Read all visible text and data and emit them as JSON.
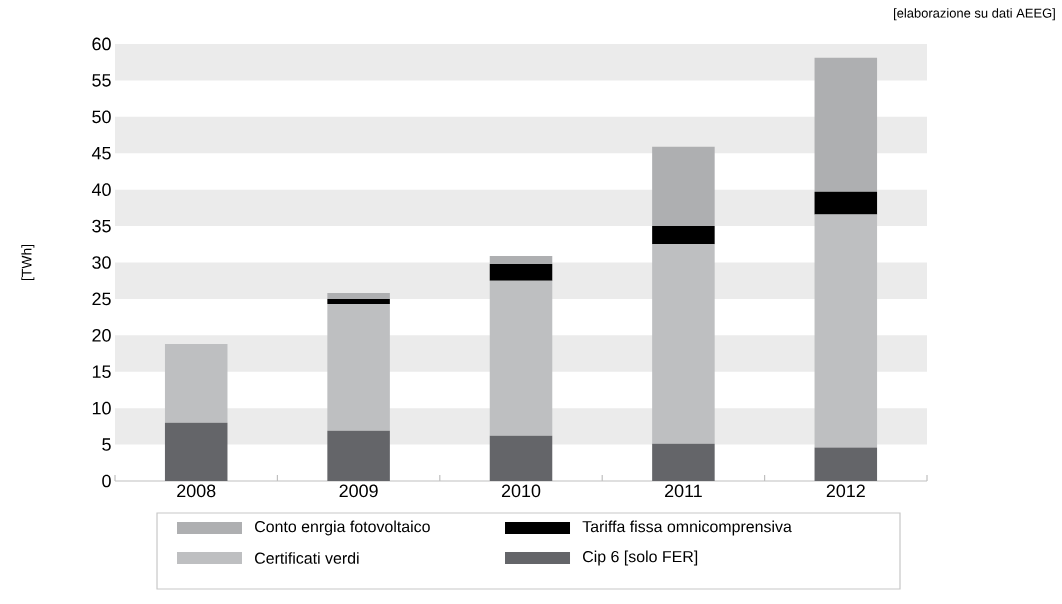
{
  "chart_data": {
    "type": "bar",
    "stacked": true,
    "ylabel": "[TWh]",
    "annotations": [
      "[elaborazione su dati AEEG]"
    ],
    "categories": [
      "2008",
      "2009",
      "2010",
      "2011",
      "2012"
    ],
    "series": [
      {
        "name": "Cip 6 [solo FER]",
        "color": "#646569",
        "values": [
          8.0,
          6.9,
          6.2,
          5.1,
          4.6
        ]
      },
      {
        "name": "Certificati verdi",
        "color": "#bebfc1",
        "values": [
          10.8,
          17.4,
          21.3,
          27.4,
          32.0
        ]
      },
      {
        "name": "Tariffa fissa omnicomprensiva",
        "color": "#000000",
        "values": [
          0,
          0.7,
          2.3,
          2.5,
          3.1
        ]
      },
      {
        "name": "Conto enrgia fotovoltaico",
        "color": "#aeafb1",
        "values": [
          0,
          0.8,
          1.1,
          10.9,
          18.4
        ]
      }
    ],
    "ylim": [
      0,
      60
    ],
    "yticks": [
      0,
      5,
      10,
      15,
      20,
      25,
      30,
      35,
      40,
      45,
      50,
      55,
      60
    ],
    "bands": [
      {
        "axis": "y",
        "from": 5,
        "to": 10,
        "color": "#ebebeb"
      },
      {
        "axis": "y",
        "from": 15,
        "to": 20,
        "color": "#ebebeb"
      },
      {
        "axis": "y",
        "from": 25,
        "to": 30,
        "color": "#ebebeb"
      },
      {
        "axis": "y",
        "from": 35,
        "to": 40,
        "color": "#ebebeb"
      },
      {
        "axis": "y",
        "from": 45,
        "to": 50,
        "color": "#ebebeb"
      },
      {
        "axis": "y",
        "from": 55,
        "to": 60,
        "color": "#ebebeb"
      }
    ],
    "grid": false,
    "legend": "bottom"
  }
}
